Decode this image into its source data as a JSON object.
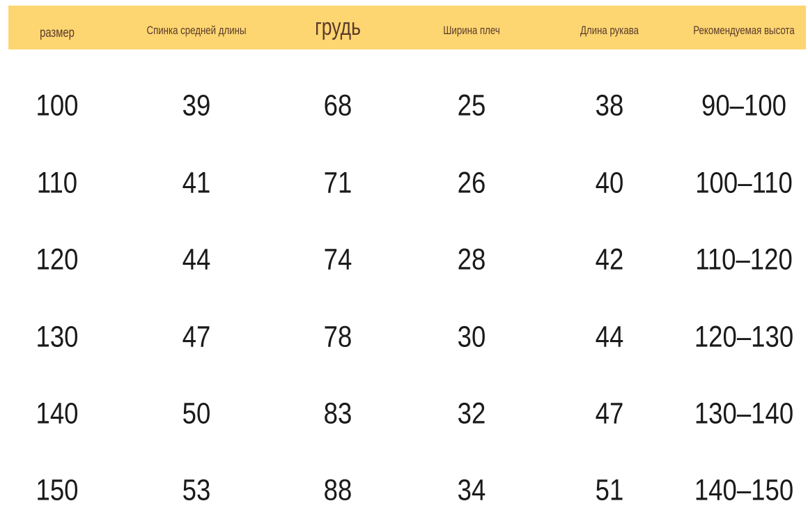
{
  "colors": {
    "header_bg": "#fdd672",
    "header_text": "#5a3a2a",
    "body_text": "#1a1a1a"
  },
  "headers": [
    "размер",
    "Спинка средней длины",
    "грудь",
    "Ширина плеч",
    "Длина рукава",
    "Рекомендуемая высота"
  ],
  "rows": [
    [
      "100",
      "39",
      "68",
      "25",
      "38",
      "90–100"
    ],
    [
      "110",
      "41",
      "71",
      "26",
      "40",
      "100–110"
    ],
    [
      "120",
      "44",
      "74",
      "28",
      "42",
      "110–120"
    ],
    [
      "130",
      "47",
      "78",
      "30",
      "44",
      "120–130"
    ],
    [
      "140",
      "50",
      "83",
      "32",
      "47",
      "130–140"
    ],
    [
      "150",
      "53",
      "88",
      "34",
      "51",
      "140–150"
    ]
  ]
}
